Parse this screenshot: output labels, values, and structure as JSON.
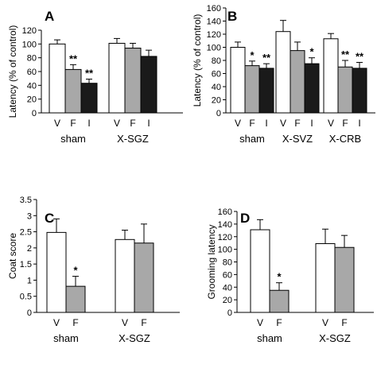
{
  "colors": {
    "V": "#ffffff",
    "F": "#a8a8a8",
    "I": "#1a1a1a",
    "stroke": "#000000"
  },
  "chart_data": [
    {
      "panel": "A",
      "type": "bar",
      "ylabel": "Latency (% of control)",
      "ylim": [
        0,
        120
      ],
      "yticks": [
        0,
        20,
        40,
        60,
        80,
        100,
        120
      ],
      "groups": [
        {
          "label": "sham",
          "bars": [
            {
              "cat": "V",
              "value": 100,
              "err": 6,
              "sig": ""
            },
            {
              "cat": "F",
              "value": 63,
              "err": 7,
              "sig": "**"
            },
            {
              "cat": "I",
              "value": 43,
              "err": 6,
              "sig": "**"
            }
          ]
        },
        {
          "label": "X-SGZ",
          "bars": [
            {
              "cat": "V",
              "value": 101,
              "err": 7,
              "sig": ""
            },
            {
              "cat": "F",
              "value": 94,
              "err": 7,
              "sig": ""
            },
            {
              "cat": "I",
              "value": 82,
              "err": 9,
              "sig": ""
            }
          ]
        }
      ]
    },
    {
      "panel": "B",
      "type": "bar",
      "ylabel": "Latency (% of control)",
      "ylim": [
        0,
        160
      ],
      "yticks": [
        0,
        20,
        40,
        60,
        80,
        100,
        120,
        140,
        160
      ],
      "groups": [
        {
          "label": "sham",
          "bars": [
            {
              "cat": "V",
              "value": 100,
              "err": 8,
              "sig": ""
            },
            {
              "cat": "F",
              "value": 72,
              "err": 7,
              "sig": "*"
            },
            {
              "cat": "I",
              "value": 68,
              "err": 7,
              "sig": "**"
            }
          ]
        },
        {
          "label": "X-SVZ",
          "bars": [
            {
              "cat": "V",
              "value": 124,
              "err": 17,
              "sig": ""
            },
            {
              "cat": "F",
              "value": 95,
              "err": 13,
              "sig": ""
            },
            {
              "cat": "I",
              "value": 75,
              "err": 9,
              "sig": "*"
            }
          ]
        },
        {
          "label": "X-CRB",
          "bars": [
            {
              "cat": "V",
              "value": 113,
              "err": 8,
              "sig": ""
            },
            {
              "cat": "F",
              "value": 70,
              "err": 10,
              "sig": "**"
            },
            {
              "cat": "I",
              "value": 68,
              "err": 9,
              "sig": "**"
            }
          ]
        }
      ]
    },
    {
      "panel": "C",
      "type": "bar",
      "ylabel": "Coat score",
      "ylim": [
        0,
        3.5
      ],
      "yticks": [
        0,
        0.5,
        1,
        1.5,
        2,
        2.5,
        3,
        3.5
      ],
      "groups": [
        {
          "label": "sham",
          "bars": [
            {
              "cat": "V",
              "value": 2.48,
              "err": 0.42,
              "sig": ""
            },
            {
              "cat": "F",
              "value": 0.81,
              "err": 0.31,
              "sig": "*"
            }
          ]
        },
        {
          "label": "X-SGZ",
          "bars": [
            {
              "cat": "V",
              "value": 2.26,
              "err": 0.29,
              "sig": ""
            },
            {
              "cat": "F",
              "value": 2.15,
              "err": 0.59,
              "sig": ""
            }
          ]
        }
      ]
    },
    {
      "panel": "D",
      "type": "bar",
      "ylabel": "Grooming latency",
      "ylim": [
        0,
        160
      ],
      "yticks": [
        0,
        20,
        40,
        60,
        80,
        100,
        120,
        140,
        160
      ],
      "groups": [
        {
          "label": "sham",
          "bars": [
            {
              "cat": "V",
              "value": 131,
              "err": 16,
              "sig": ""
            },
            {
              "cat": "F",
              "value": 35,
              "err": 12,
              "sig": "*"
            }
          ]
        },
        {
          "label": "X-SGZ",
          "bars": [
            {
              "cat": "V",
              "value": 109,
              "err": 23,
              "sig": ""
            },
            {
              "cat": "F",
              "value": 103,
              "err": 19,
              "sig": ""
            }
          ]
        }
      ]
    }
  ]
}
